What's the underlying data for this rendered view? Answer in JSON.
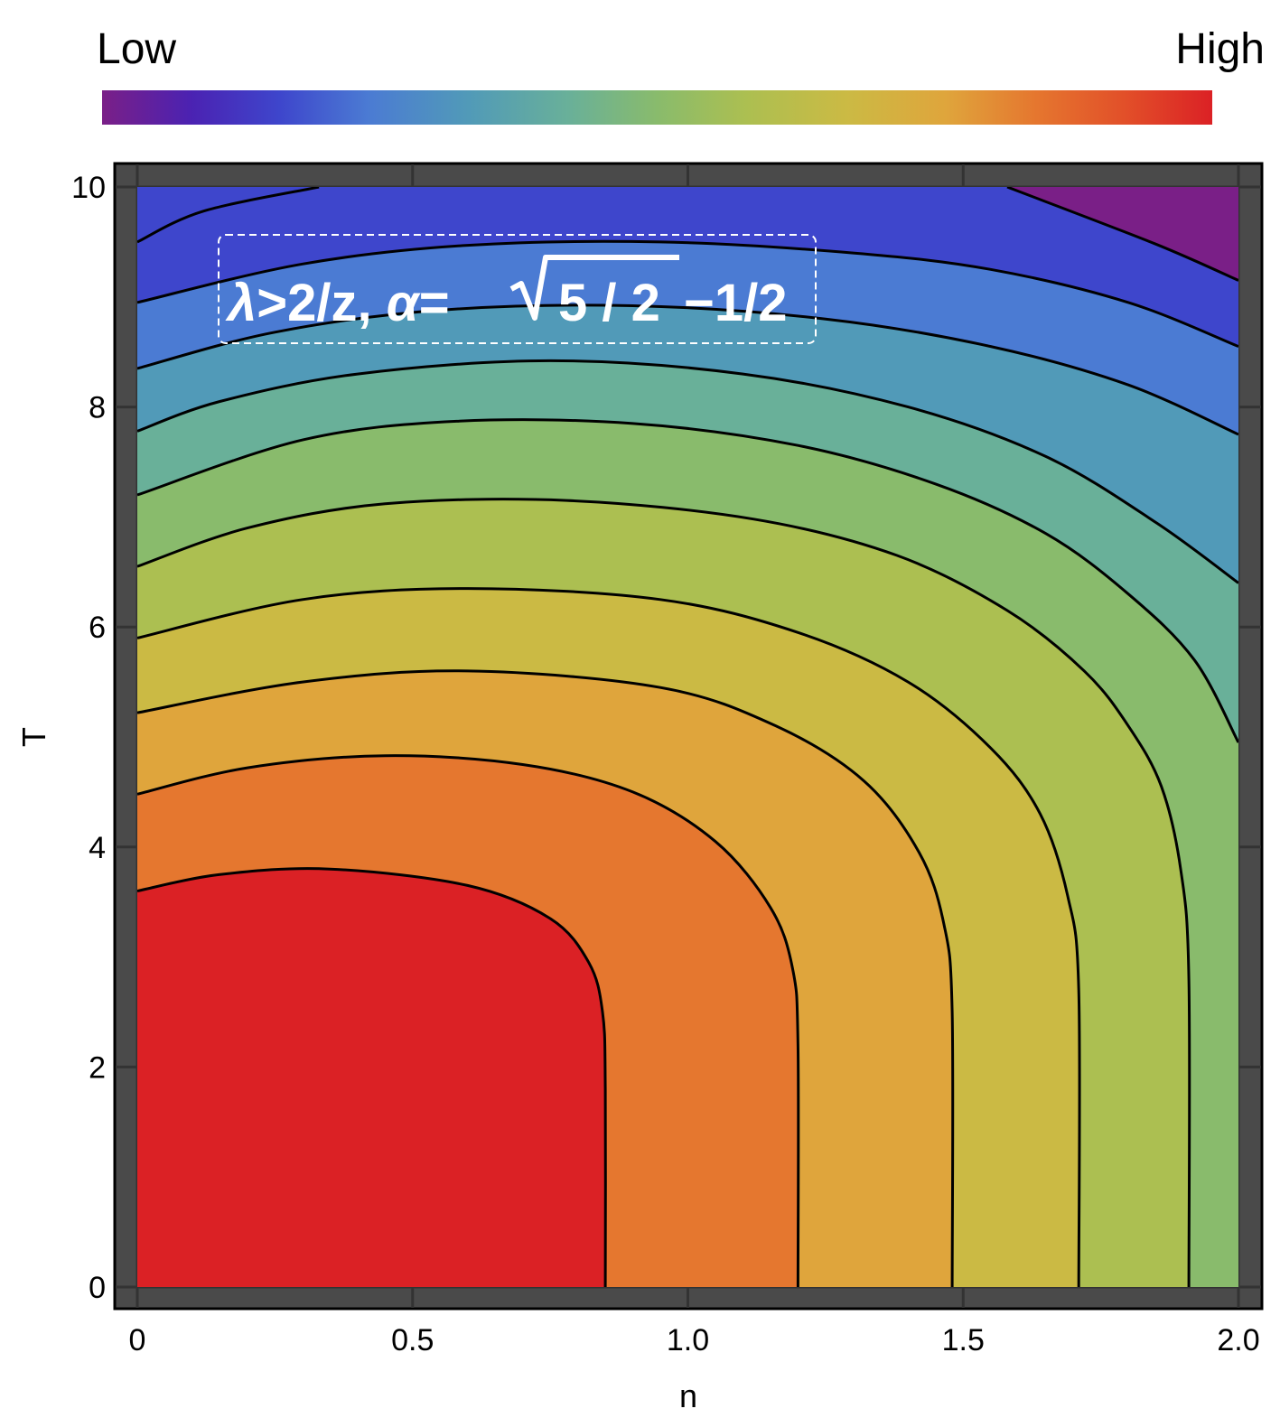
{
  "chart_data": {
    "type": "contour",
    "xlabel": "n",
    "ylabel": "T",
    "xlim": [
      0,
      2
    ],
    "ylim": [
      0,
      10
    ],
    "x_ticks": [
      "0",
      "0.5",
      "1.0",
      "1.5",
      "2.0"
    ],
    "y_ticks": [
      "0",
      "2",
      "4",
      "6",
      "8",
      "10"
    ],
    "grid": true,
    "colorbar": {
      "low_label": "Low",
      "high_label": "High",
      "colors": [
        "#7a1f87",
        "#4b22b2",
        "#3e46cc",
        "#4b7bd3",
        "#519ab8",
        "#69b099",
        "#89bb6c",
        "#acbf51",
        "#cbba44",
        "#dfa53c",
        "#e5772f",
        "#e25029",
        "#db2125"
      ]
    },
    "annotation": {
      "lambda": "λ",
      "part1": ">2/z, ",
      "alpha": "α",
      "part2": "=",
      "radical": "5 / 2",
      "part3": "−1/2"
    },
    "levels": [
      {
        "band_color": "#db2125",
        "contour": [
          [
            0.85,
            0
          ],
          [
            0.85,
            1.8
          ],
          [
            0.845,
            2.5
          ],
          [
            0.82,
            2.95
          ],
          [
            0.75,
            3.35
          ],
          [
            0.6,
            3.65
          ],
          [
            0.35,
            3.8
          ],
          [
            0.15,
            3.75
          ],
          [
            0,
            3.6
          ]
        ]
      },
      {
        "band_color": "#e5772f",
        "contour": [
          [
            1.2,
            0
          ],
          [
            1.2,
            2.2
          ],
          [
            1.19,
            2.9
          ],
          [
            1.15,
            3.45
          ],
          [
            1.05,
            4.05
          ],
          [
            0.9,
            4.5
          ],
          [
            0.7,
            4.75
          ],
          [
            0.45,
            4.83
          ],
          [
            0.2,
            4.72
          ],
          [
            0,
            4.48
          ]
        ]
      },
      {
        "band_color": "#dfa53c",
        "contour": [
          [
            1.48,
            0
          ],
          [
            1.48,
            2.5
          ],
          [
            1.465,
            3.3
          ],
          [
            1.42,
            3.95
          ],
          [
            1.32,
            4.6
          ],
          [
            1.16,
            5.1
          ],
          [
            0.95,
            5.45
          ],
          [
            0.6,
            5.6
          ],
          [
            0.3,
            5.5
          ],
          [
            0,
            5.22
          ]
        ]
      },
      {
        "band_color": "#cbba44",
        "contour": [
          [
            1.71,
            0
          ],
          [
            1.71,
            2.7
          ],
          [
            1.69,
            3.55
          ],
          [
            1.64,
            4.3
          ],
          [
            1.55,
            4.9
          ],
          [
            1.4,
            5.5
          ],
          [
            1.2,
            5.95
          ],
          [
            0.95,
            6.25
          ],
          [
            0.6,
            6.35
          ],
          [
            0.3,
            6.25
          ],
          [
            0,
            5.9
          ]
        ]
      },
      {
        "band_color": "#acbf51",
        "contour": [
          [
            1.91,
            0
          ],
          [
            1.91,
            2.8
          ],
          [
            1.895,
            3.8
          ],
          [
            1.86,
            4.55
          ],
          [
            1.8,
            5.1
          ],
          [
            1.72,
            5.6
          ],
          [
            1.58,
            6.15
          ],
          [
            1.38,
            6.65
          ],
          [
            1.12,
            6.98
          ],
          [
            0.78,
            7.15
          ],
          [
            0.45,
            7.12
          ],
          [
            0.2,
            6.9
          ],
          [
            0,
            6.55
          ]
        ]
      },
      {
        "band_color": "#89bb6c",
        "contour": [
          [
            2.0,
            4.95
          ],
          [
            1.92,
            5.7
          ],
          [
            1.8,
            6.3
          ],
          [
            1.65,
            6.85
          ],
          [
            1.45,
            7.3
          ],
          [
            1.2,
            7.65
          ],
          [
            0.9,
            7.85
          ],
          [
            0.58,
            7.87
          ],
          [
            0.3,
            7.7
          ],
          [
            0,
            7.2
          ]
        ]
      },
      {
        "band_color": "#69b099",
        "contour": [
          [
            2.0,
            6.4
          ],
          [
            1.85,
            6.95
          ],
          [
            1.65,
            7.55
          ],
          [
            1.4,
            8.0
          ],
          [
            1.1,
            8.3
          ],
          [
            0.75,
            8.42
          ],
          [
            0.4,
            8.3
          ],
          [
            0.15,
            8.05
          ],
          [
            0,
            7.78
          ]
        ]
      },
      {
        "band_color": "#519ab8",
        "contour": [
          [
            2.0,
            7.75
          ],
          [
            1.8,
            8.2
          ],
          [
            1.55,
            8.55
          ],
          [
            1.25,
            8.8
          ],
          [
            0.9,
            8.92
          ],
          [
            0.55,
            8.88
          ],
          [
            0.25,
            8.68
          ],
          [
            0,
            8.35
          ]
        ]
      },
      {
        "band_color": "#4b7bd3",
        "contour": [
          [
            2.0,
            8.55
          ],
          [
            1.8,
            8.95
          ],
          [
            1.55,
            9.25
          ],
          [
            1.3,
            9.4
          ],
          [
            0.95,
            9.5
          ],
          [
            0.6,
            9.47
          ],
          [
            0.3,
            9.3
          ],
          [
            0,
            8.95
          ]
        ]
      },
      {
        "band_color": "#3e46cc",
        "contour": [
          [
            2.0,
            9.15
          ],
          [
            1.85,
            9.48
          ],
          [
            1.58,
            10.0
          ]
        ]
      },
      {
        "band_color": "#7a1f87",
        "contour": [
          [
            0.33,
            10.0
          ],
          [
            0.12,
            9.78
          ],
          [
            0,
            9.5
          ]
        ]
      }
    ]
  }
}
